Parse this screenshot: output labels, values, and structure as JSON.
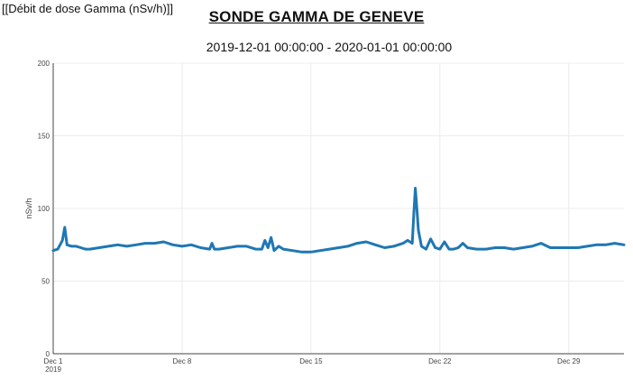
{
  "page": {
    "corner_label": "[[Débit de dose Gamma (nSv/h)]]",
    "title": "SONDE GAMMA DE GENEVE",
    "date_range": "2019-12-01 00:00:00 - 2020-01-01 00:00:00"
  },
  "colors": {
    "series": "#1f77b4",
    "grid": "#ececec",
    "axis": "#444444"
  },
  "chart_data": {
    "type": "line",
    "title": "SONDE GAMMA DE GENEVE",
    "subtitle": "2019-12-01 00:00:00 - 2020-01-01 00:00:00",
    "xlabel": "",
    "ylabel": "nSv/h",
    "ylim": [
      0,
      200
    ],
    "yticks": [
      0,
      50,
      100,
      150,
      200
    ],
    "xlim": [
      "2019-12-01",
      "2020-01-01"
    ],
    "xticks": [
      {
        "x": "2019-12-01",
        "label": "Dec 1",
        "sublabel": "2019"
      },
      {
        "x": "2019-12-08",
        "label": "Dec 8",
        "sublabel": ""
      },
      {
        "x": "2019-12-15",
        "label": "Dec 15",
        "sublabel": ""
      },
      {
        "x": "2019-12-22",
        "label": "Dec 22",
        "sublabel": ""
      },
      {
        "x": "2019-12-29",
        "label": "Dec 29",
        "sublabel": ""
      }
    ],
    "grid": true,
    "legend": "none",
    "series": [
      {
        "name": "",
        "x": [
          "2019-12-01 00:00",
          "2019-12-01 06:00",
          "2019-12-01 12:00",
          "2019-12-01 15:00",
          "2019-12-01 18:00",
          "2019-12-02 00:00",
          "2019-12-02 06:00",
          "2019-12-02 12:00",
          "2019-12-02 18:00",
          "2019-12-03 00:00",
          "2019-12-03 12:00",
          "2019-12-04 00:00",
          "2019-12-04 12:00",
          "2019-12-05 00:00",
          "2019-12-05 12:00",
          "2019-12-06 00:00",
          "2019-12-06 12:00",
          "2019-12-07 00:00",
          "2019-12-07 12:00",
          "2019-12-08 00:00",
          "2019-12-08 12:00",
          "2019-12-09 00:00",
          "2019-12-09 12:00",
          "2019-12-09 15:00",
          "2019-12-09 18:00",
          "2019-12-10 00:00",
          "2019-12-10 12:00",
          "2019-12-11 00:00",
          "2019-12-11 12:00",
          "2019-12-12 00:00",
          "2019-12-12 08:00",
          "2019-12-12 12:00",
          "2019-12-12 16:00",
          "2019-12-12 20:00",
          "2019-12-13 00:00",
          "2019-12-13 06:00",
          "2019-12-13 12:00",
          "2019-12-14 00:00",
          "2019-12-14 12:00",
          "2019-12-15 00:00",
          "2019-12-15 12:00",
          "2019-12-16 00:00",
          "2019-12-16 12:00",
          "2019-12-17 00:00",
          "2019-12-17 12:00",
          "2019-12-18 00:00",
          "2019-12-18 12:00",
          "2019-12-19 00:00",
          "2019-12-19 12:00",
          "2019-12-20 00:00",
          "2019-12-20 06:00",
          "2019-12-20 12:00",
          "2019-12-20 14:00",
          "2019-12-20 16:00",
          "2019-12-20 18:00",
          "2019-12-20 20:00",
          "2019-12-21 00:00",
          "2019-12-21 06:00",
          "2019-12-21 12:00",
          "2019-12-21 18:00",
          "2019-12-22 00:00",
          "2019-12-22 06:00",
          "2019-12-22 12:00",
          "2019-12-22 18:00",
          "2019-12-23 00:00",
          "2019-12-23 06:00",
          "2019-12-23 12:00",
          "2019-12-24 00:00",
          "2019-12-24 12:00",
          "2019-12-25 00:00",
          "2019-12-25 12:00",
          "2019-12-26 00:00",
          "2019-12-26 12:00",
          "2019-12-27 00:00",
          "2019-12-27 12:00",
          "2019-12-28 00:00",
          "2019-12-28 12:00",
          "2019-12-29 00:00",
          "2019-12-29 12:00",
          "2019-12-30 00:00",
          "2019-12-30 12:00",
          "2019-12-31 00:00",
          "2019-12-31 12:00",
          "2020-01-01 00:00"
        ],
        "y": [
          71,
          72,
          78,
          87,
          75,
          74,
          74,
          73,
          72,
          72,
          73,
          74,
          75,
          74,
          75,
          76,
          76,
          77,
          75,
          74,
          75,
          73,
          72,
          76,
          72,
          72,
          73,
          74,
          74,
          72,
          72,
          78,
          73,
          80,
          71,
          74,
          72,
          71,
          70,
          70,
          71,
          72,
          73,
          74,
          76,
          77,
          75,
          73,
          74,
          76,
          78,
          76,
          96,
          114,
          100,
          85,
          74,
          72,
          79,
          73,
          72,
          77,
          72,
          72,
          73,
          76,
          73,
          72,
          72,
          73,
          73,
          72,
          73,
          74,
          76,
          73,
          73,
          73,
          73,
          74,
          75,
          75,
          76,
          75
        ]
      }
    ]
  }
}
